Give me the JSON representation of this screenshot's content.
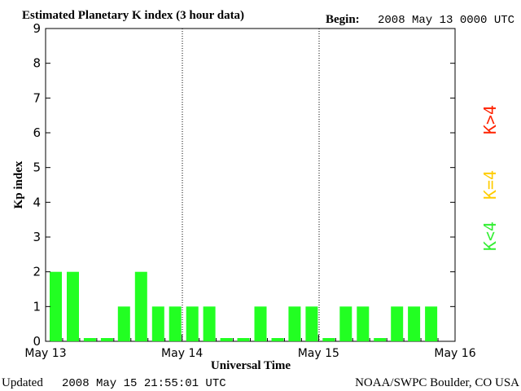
{
  "chart_data": {
    "type": "bar",
    "title": "Estimated Planetary K index (3 hour data)",
    "begin_label": "Begin:",
    "begin_value": "2008 May 13 0000 UTC",
    "ylabel": "Kp index",
    "xlabel": "Universal Time",
    "ylim": [
      0,
      9
    ],
    "yticks": [
      "0",
      "1",
      "2",
      "3",
      "4",
      "5",
      "6",
      "7",
      "8",
      "9"
    ],
    "day_labels": [
      "May 13",
      "May 14",
      "May 15",
      "May 16"
    ],
    "values": [
      2,
      2,
      0,
      0,
      1,
      2,
      1,
      1,
      1,
      1,
      0,
      0,
      1,
      0,
      1,
      1,
      0,
      1,
      1,
      0,
      1,
      1,
      1
    ],
    "bar_color": "#22ff22",
    "grid": "dotted vertical lines at day boundaries",
    "legend": [
      {
        "label": "K<4",
        "color": "#33ee33"
      },
      {
        "label": "K=4",
        "color": "#ffcc00"
      },
      {
        "label": "K>4",
        "color": "#ff2200"
      }
    ]
  },
  "footer": {
    "updated_label": "Updated",
    "updated_value": "2008 May 15 21:55:01 UTC",
    "source": "NOAA/SWPC Boulder, CO USA"
  }
}
